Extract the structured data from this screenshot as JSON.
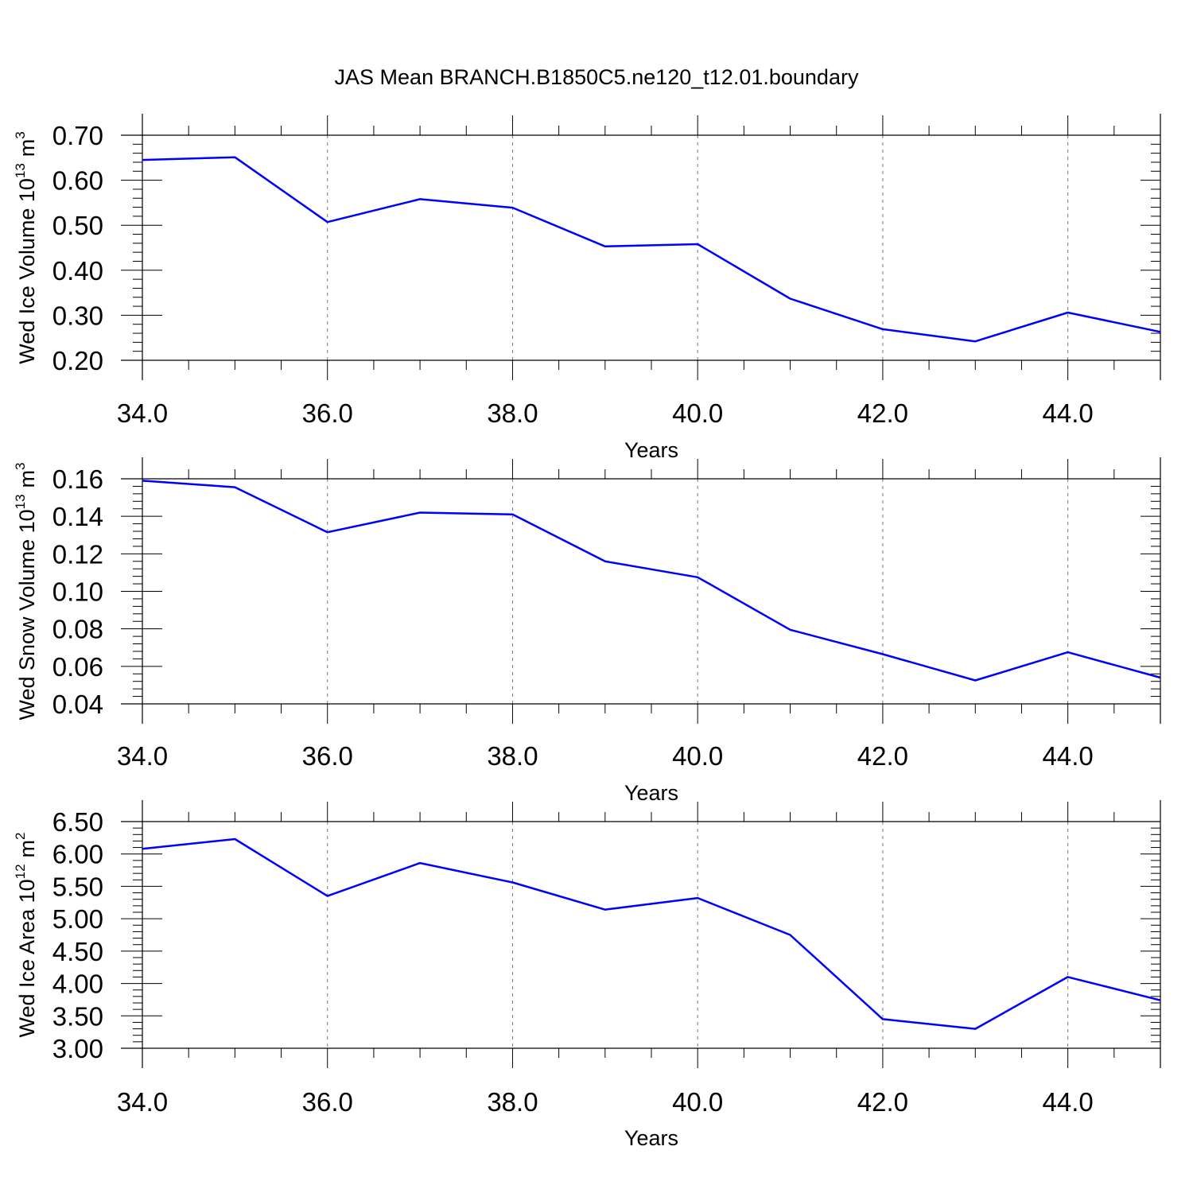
{
  "figure_title": "JAS Mean BRANCH.B1850C5.ne120_t12.01.boundary",
  "colors": {
    "line": "#0000ff",
    "axis": "#000000",
    "grid": "#777777"
  },
  "chart_data": [
    {
      "type": "line",
      "title": "JAS Mean BRANCH.B1850C5.ne120_t12.01.boundary",
      "ylabel": {
        "text": "Wed Ice Volume 10",
        "exp": "13",
        "unit": "m",
        "unit_exp": "3"
      },
      "xlabel": "Years",
      "x": [
        34,
        35,
        36,
        37,
        38,
        39,
        40,
        41,
        42,
        43,
        44,
        45
      ],
      "values": [
        0.645,
        0.651,
        0.507,
        0.558,
        0.539,
        0.453,
        0.458,
        0.337,
        0.269,
        0.242,
        0.306,
        0.263
      ],
      "xlim": [
        34,
        45
      ],
      "ylim": [
        0.2,
        0.7
      ],
      "xticks": [
        34,
        36,
        38,
        40,
        42,
        44
      ],
      "xtick_labels": [
        "34.0",
        "36.0",
        "38.0",
        "40.0",
        "42.0",
        "44.0"
      ],
      "yticks": [
        0.2,
        0.3,
        0.4,
        0.5,
        0.6,
        0.7
      ],
      "ytick_labels": [
        "0.20",
        "0.30",
        "0.40",
        "0.50",
        "0.60",
        "0.70"
      ],
      "grid": "vertical-dashed"
    },
    {
      "type": "line",
      "ylabel": {
        "text": "Wed Snow Volume 10",
        "exp": "13",
        "unit": "m",
        "unit_exp": "3"
      },
      "xlabel": "Years",
      "x": [
        34,
        35,
        36,
        37,
        38,
        39,
        40,
        41,
        42,
        43,
        44,
        45
      ],
      "values": [
        0.159,
        0.1555,
        0.1315,
        0.142,
        0.141,
        0.116,
        0.1075,
        0.0795,
        0.0665,
        0.0525,
        0.0675,
        0.054
      ],
      "xlim": [
        34,
        45
      ],
      "ylim": [
        0.04,
        0.16
      ],
      "xticks": [
        34,
        36,
        38,
        40,
        42,
        44
      ],
      "xtick_labels": [
        "34.0",
        "36.0",
        "38.0",
        "40.0",
        "42.0",
        "44.0"
      ],
      "yticks": [
        0.04,
        0.06,
        0.08,
        0.1,
        0.12,
        0.14,
        0.16
      ],
      "ytick_labels": [
        "0.04",
        "0.06",
        "0.08",
        "0.10",
        "0.12",
        "0.14",
        "0.16"
      ],
      "grid": "vertical-dashed"
    },
    {
      "type": "line",
      "ylabel": {
        "text": "Wed Ice Area 10",
        "exp": "12",
        "unit": "m",
        "unit_exp": "2"
      },
      "xlabel": "Years",
      "x": [
        34,
        35,
        36,
        37,
        38,
        39,
        40,
        41,
        42,
        43,
        44,
        45
      ],
      "values": [
        6.08,
        6.23,
        5.35,
        5.86,
        5.56,
        5.14,
        5.32,
        4.75,
        3.45,
        3.3,
        4.1,
        3.74
      ],
      "xlim": [
        34,
        45
      ],
      "ylim": [
        3.0,
        6.5
      ],
      "xticks": [
        34,
        36,
        38,
        40,
        42,
        44
      ],
      "xtick_labels": [
        "34.0",
        "36.0",
        "38.0",
        "40.0",
        "42.0",
        "44.0"
      ],
      "yticks": [
        3.0,
        3.5,
        4.0,
        4.5,
        5.0,
        5.5,
        6.0,
        6.5
      ],
      "ytick_labels": [
        "3.00",
        "3.50",
        "4.00",
        "4.50",
        "5.00",
        "5.50",
        "6.00",
        "6.50"
      ],
      "grid": "vertical-dashed"
    }
  ]
}
